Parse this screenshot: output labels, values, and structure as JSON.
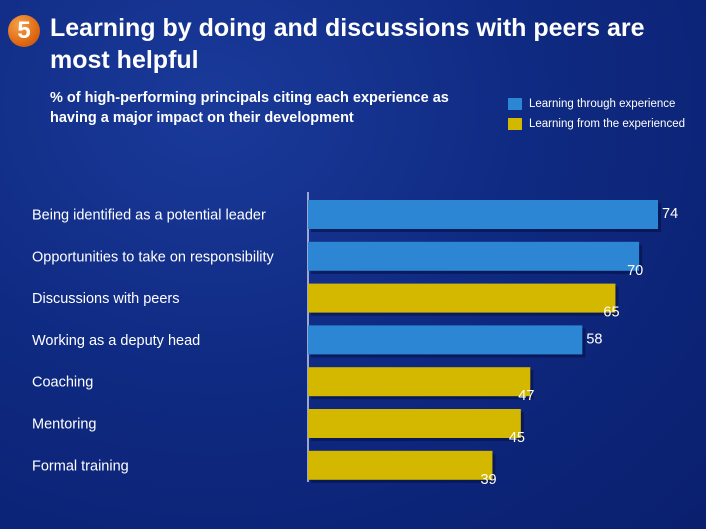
{
  "slide": {
    "number": "5",
    "title": "Learning by doing and discussions with peers are most helpful",
    "subtitle": "% of high-performing principals citing each experience as having a major impact on their development"
  },
  "colors": {
    "experience": "#2d86d4",
    "experienced": "#d4b800",
    "badge": "#e87a1e",
    "background": "#0f2a82"
  },
  "legend": [
    {
      "label": "Learning through experience",
      "color": "#2d86d4"
    },
    {
      "label": "Learning from the experienced",
      "color": "#d4b800"
    }
  ],
  "chart_data": {
    "type": "bar",
    "orientation": "horizontal",
    "title": "Learning by doing and discussions with peers are most helpful",
    "subtitle": "% of high-performing principals citing each experience as having a major impact on their development",
    "xlabel": "",
    "ylabel": "",
    "xlim": [
      0,
      80
    ],
    "grid": false,
    "legend_position": "top-right",
    "categories": [
      "Being identified as a potential leader",
      "Opportunities to take on responsibility",
      "Discussions with peers",
      "Working as a deputy head",
      "Coaching",
      "Mentoring",
      "Formal training"
    ],
    "values": [
      74,
      70,
      65,
      58,
      47,
      45,
      39
    ],
    "series_membership": [
      "Learning through experience",
      "Learning through experience",
      "Learning from the experienced",
      "Learning through experience",
      "Learning from the experienced",
      "Learning from the experienced",
      "Learning from the experienced"
    ]
  }
}
